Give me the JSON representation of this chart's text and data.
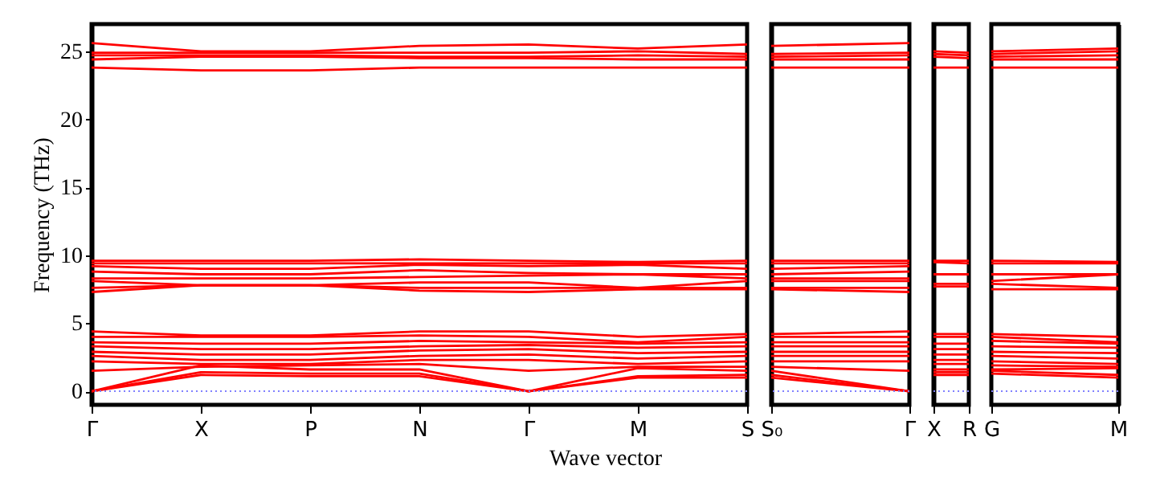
{
  "chart_data": [
    {
      "type": "line",
      "ylabel": "Frequency (THz)",
      "xlabel": "Wave vector",
      "ylim": [
        -1,
        27
      ],
      "yticks": [
        0,
        5,
        10,
        15,
        20,
        25
      ],
      "tick_labels": true,
      "categories": [
        "Γ",
        "X",
        "P",
        "N",
        "Γ",
        "M",
        "S"
      ],
      "ref_lines": [
        {
          "axis": "y",
          "value": 0,
          "color": "#8080ff",
          "line_style": "dotted"
        }
      ],
      "series": [
        {
          "color": "#ff0000",
          "values": [
            25.6,
            25.0,
            25.0,
            25.4,
            25.5,
            25.2,
            25.5
          ]
        },
        {
          "color": "#ff0000",
          "values": [
            24.9,
            24.9,
            24.9,
            24.9,
            24.9,
            25.0,
            24.8
          ]
        },
        {
          "color": "#ff0000",
          "values": [
            24.7,
            24.7,
            24.7,
            24.6,
            24.6,
            24.7,
            24.6
          ]
        },
        {
          "color": "#ff0000",
          "values": [
            24.4,
            24.6,
            24.6,
            24.5,
            24.5,
            24.4,
            24.4
          ]
        },
        {
          "color": "#ff0000",
          "values": [
            23.8,
            23.6,
            23.6,
            23.8,
            23.8,
            23.8,
            23.8
          ]
        },
        {
          "color": "#ff0000",
          "values": [
            9.6,
            9.6,
            9.6,
            9.7,
            9.6,
            9.5,
            9.6
          ]
        },
        {
          "color": "#ff0000",
          "values": [
            9.4,
            9.4,
            9.4,
            9.4,
            9.4,
            9.4,
            9.4
          ]
        },
        {
          "color": "#ff0000",
          "values": [
            9.2,
            9.0,
            9.0,
            9.3,
            9.2,
            9.3,
            9.0
          ]
        },
        {
          "color": "#ff0000",
          "values": [
            8.8,
            8.6,
            8.6,
            8.9,
            8.7,
            8.6,
            8.6
          ]
        },
        {
          "color": "#ff0000",
          "values": [
            8.3,
            8.3,
            8.3,
            8.4,
            8.5,
            8.6,
            8.3
          ]
        },
        {
          "color": "#ff0000",
          "values": [
            8.1,
            7.8,
            7.8,
            8.0,
            8.0,
            7.6,
            8.1
          ]
        },
        {
          "color": "#ff0000",
          "values": [
            7.6,
            7.8,
            7.8,
            7.6,
            7.6,
            7.6,
            7.6
          ]
        },
        {
          "color": "#ff0000",
          "values": [
            7.3,
            7.8,
            7.8,
            7.4,
            7.3,
            7.5,
            7.5
          ]
        },
        {
          "color": "#ff0000",
          "values": [
            4.4,
            4.1,
            4.1,
            4.4,
            4.4,
            4.0,
            4.2
          ]
        },
        {
          "color": "#ff0000",
          "values": [
            4.0,
            4.0,
            4.0,
            4.1,
            4.0,
            3.6,
            4.0
          ]
        },
        {
          "color": "#ff0000",
          "values": [
            3.6,
            3.5,
            3.5,
            3.7,
            3.6,
            3.5,
            3.6
          ]
        },
        {
          "color": "#ff0000",
          "values": [
            3.3,
            3.1,
            3.1,
            3.3,
            3.4,
            3.2,
            3.3
          ]
        },
        {
          "color": "#ff0000",
          "values": [
            2.9,
            2.7,
            2.7,
            3.0,
            3.1,
            2.8,
            2.9
          ]
        },
        {
          "color": "#ff0000",
          "values": [
            2.6,
            2.3,
            2.3,
            2.6,
            2.7,
            2.4,
            2.6
          ]
        },
        {
          "color": "#ff0000",
          "values": [
            2.2,
            2.0,
            2.0,
            2.3,
            2.3,
            2.0,
            2.2
          ]
        },
        {
          "color": "#ff0000",
          "values": [
            1.5,
            1.8,
            1.9,
            2.0,
            1.5,
            1.8,
            1.8
          ]
        },
        {
          "color": "#ff0000",
          "values": [
            0,
            1.9,
            1.6,
            1.6,
            0,
            1.7,
            1.5
          ]
        },
        {
          "color": "#ff0000",
          "values": [
            0,
            1.4,
            1.3,
            1.3,
            0,
            1.1,
            1.2
          ]
        },
        {
          "color": "#ff0000",
          "values": [
            0,
            1.2,
            1.1,
            1.1,
            0,
            1.0,
            1.0
          ]
        }
      ]
    },
    {
      "type": "line",
      "ylim": [
        -1,
        27
      ],
      "yticks": [
        0,
        5,
        10,
        15,
        20,
        25
      ],
      "tick_labels": "x",
      "categories": [
        "S₀",
        "Γ"
      ],
      "ref_lines": [
        {
          "axis": "y",
          "value": 0,
          "color": "#8080ff",
          "line_style": "dotted"
        }
      ],
      "series": [
        {
          "color": "#ff0000",
          "values": [
            25.4,
            25.6
          ]
        },
        {
          "color": "#ff0000",
          "values": [
            24.8,
            24.9
          ]
        },
        {
          "color": "#ff0000",
          "values": [
            24.6,
            24.7
          ]
        },
        {
          "color": "#ff0000",
          "values": [
            24.4,
            24.4
          ]
        },
        {
          "color": "#ff0000",
          "values": [
            23.8,
            23.8
          ]
        },
        {
          "color": "#ff0000",
          "values": [
            9.6,
            9.6
          ]
        },
        {
          "color": "#ff0000",
          "values": [
            9.4,
            9.4
          ]
        },
        {
          "color": "#ff0000",
          "values": [
            9.0,
            9.2
          ]
        },
        {
          "color": "#ff0000",
          "values": [
            8.6,
            8.8
          ]
        },
        {
          "color": "#ff0000",
          "values": [
            8.3,
            8.3
          ]
        },
        {
          "color": "#ff0000",
          "values": [
            8.1,
            8.1
          ]
        },
        {
          "color": "#ff0000",
          "values": [
            7.6,
            7.6
          ]
        },
        {
          "color": "#ff0000",
          "values": [
            7.5,
            7.3
          ]
        },
        {
          "color": "#ff0000",
          "values": [
            4.2,
            4.4
          ]
        },
        {
          "color": "#ff0000",
          "values": [
            4.0,
            4.0
          ]
        },
        {
          "color": "#ff0000",
          "values": [
            3.6,
            3.6
          ]
        },
        {
          "color": "#ff0000",
          "values": [
            3.3,
            3.3
          ]
        },
        {
          "color": "#ff0000",
          "values": [
            2.9,
            2.9
          ]
        },
        {
          "color": "#ff0000",
          "values": [
            2.6,
            2.6
          ]
        },
        {
          "color": "#ff0000",
          "values": [
            2.2,
            2.2
          ]
        },
        {
          "color": "#ff0000",
          "values": [
            1.8,
            1.5
          ]
        },
        {
          "color": "#ff0000",
          "values": [
            1.5,
            0
          ]
        },
        {
          "color": "#ff0000",
          "values": [
            1.2,
            0
          ]
        },
        {
          "color": "#ff0000",
          "values": [
            1.0,
            0
          ]
        }
      ]
    },
    {
      "type": "line",
      "ylim": [
        -1,
        27
      ],
      "yticks": [
        0,
        5,
        10,
        15,
        20,
        25
      ],
      "tick_labels": "x",
      "categories": [
        "X",
        "R"
      ],
      "ref_lines": [
        {
          "axis": "y",
          "value": 0,
          "color": "#8080ff",
          "line_style": "dotted"
        }
      ],
      "series": [
        {
          "color": "#ff0000",
          "values": [
            25.0,
            24.9
          ]
        },
        {
          "color": "#ff0000",
          "values": [
            24.8,
            24.7
          ]
        },
        {
          "color": "#ff0000",
          "values": [
            24.6,
            24.5
          ]
        },
        {
          "color": "#ff0000",
          "values": [
            23.8,
            23.8
          ]
        },
        {
          "color": "#ff0000",
          "values": [
            9.6,
            9.6
          ]
        },
        {
          "color": "#ff0000",
          "values": [
            9.5,
            9.4
          ]
        },
        {
          "color": "#ff0000",
          "values": [
            8.6,
            8.6
          ]
        },
        {
          "color": "#ff0000",
          "values": [
            7.9,
            7.9
          ]
        },
        {
          "color": "#ff0000",
          "values": [
            7.7,
            7.7
          ]
        },
        {
          "color": "#ff0000",
          "values": [
            4.2,
            4.2
          ]
        },
        {
          "color": "#ff0000",
          "values": [
            4.0,
            4.0
          ]
        },
        {
          "color": "#ff0000",
          "values": [
            3.5,
            3.5
          ]
        },
        {
          "color": "#ff0000",
          "values": [
            3.1,
            3.1
          ]
        },
        {
          "color": "#ff0000",
          "values": [
            2.7,
            2.7
          ]
        },
        {
          "color": "#ff0000",
          "values": [
            2.3,
            2.3
          ]
        },
        {
          "color": "#ff0000",
          "values": [
            2.0,
            2.0
          ]
        },
        {
          "color": "#ff0000",
          "values": [
            1.6,
            1.6
          ]
        },
        {
          "color": "#ff0000",
          "values": [
            1.4,
            1.4
          ]
        },
        {
          "color": "#ff0000",
          "values": [
            1.2,
            1.2
          ]
        }
      ]
    },
    {
      "type": "line",
      "ylim": [
        -1,
        27
      ],
      "yticks": [
        0,
        5,
        10,
        15,
        20,
        25
      ],
      "tick_labels": "x",
      "categories": [
        "G",
        "M"
      ],
      "ref_lines": [
        {
          "axis": "y",
          "value": 0,
          "color": "#8080ff",
          "line_style": "dotted"
        }
      ],
      "series": [
        {
          "color": "#ff0000",
          "values": [
            25.0,
            25.2
          ]
        },
        {
          "color": "#ff0000",
          "values": [
            24.8,
            25.0
          ]
        },
        {
          "color": "#ff0000",
          "values": [
            24.6,
            24.7
          ]
        },
        {
          "color": "#ff0000",
          "values": [
            24.4,
            24.4
          ]
        },
        {
          "color": "#ff0000",
          "values": [
            23.8,
            23.8
          ]
        },
        {
          "color": "#ff0000",
          "values": [
            9.6,
            9.5
          ]
        },
        {
          "color": "#ff0000",
          "values": [
            9.4,
            9.4
          ]
        },
        {
          "color": "#ff0000",
          "values": [
            8.6,
            8.6
          ]
        },
        {
          "color": "#ff0000",
          "values": [
            8.1,
            8.6
          ]
        },
        {
          "color": "#ff0000",
          "values": [
            7.9,
            7.6
          ]
        },
        {
          "color": "#ff0000",
          "values": [
            7.5,
            7.5
          ]
        },
        {
          "color": "#ff0000",
          "values": [
            4.2,
            4.0
          ]
        },
        {
          "color": "#ff0000",
          "values": [
            4.0,
            3.6
          ]
        },
        {
          "color": "#ff0000",
          "values": [
            3.7,
            3.5
          ]
        },
        {
          "color": "#ff0000",
          "values": [
            3.3,
            3.2
          ]
        },
        {
          "color": "#ff0000",
          "values": [
            2.9,
            2.8
          ]
        },
        {
          "color": "#ff0000",
          "values": [
            2.6,
            2.4
          ]
        },
        {
          "color": "#ff0000",
          "values": [
            2.2,
            2.0
          ]
        },
        {
          "color": "#ff0000",
          "values": [
            1.9,
            1.8
          ]
        },
        {
          "color": "#ff0000",
          "values": [
            1.6,
            1.7
          ]
        },
        {
          "color": "#ff0000",
          "values": [
            1.5,
            1.2
          ]
        },
        {
          "color": "#ff0000",
          "values": [
            1.3,
            1.0
          ]
        }
      ]
    }
  ]
}
